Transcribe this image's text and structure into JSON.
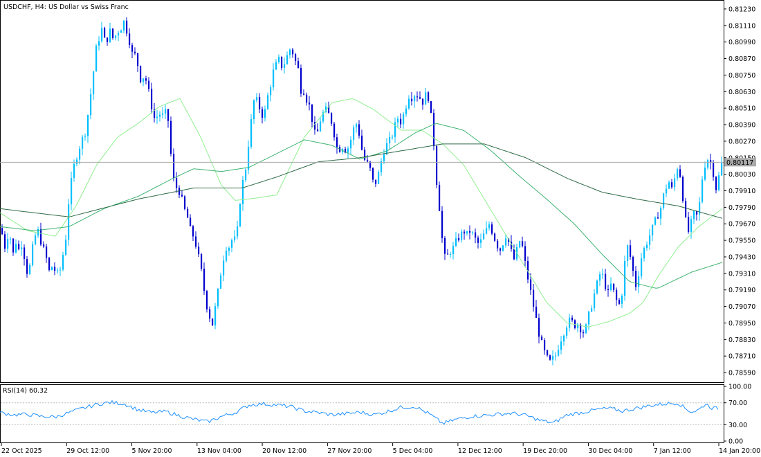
{
  "header": {
    "symbol_label": "USDCHF, H4:  US Dollar vs Swiss Franc"
  },
  "price_axis": {
    "ticks": [
      "0.81230",
      "0.81110",
      "0.80990",
      "0.80870",
      "0.80750",
      "0.80630",
      "0.80510",
      "0.80390",
      "0.80270",
      "0.80150",
      "0.80030",
      "0.79910",
      "0.79790",
      "0.79670",
      "0.79550",
      "0.79430",
      "0.79310",
      "0.79190",
      "0.79070",
      "0.78950",
      "0.78830",
      "0.78710",
      "0.78590"
    ],
    "current_price_label": "0.80117"
  },
  "time_axis": {
    "ticks": [
      "22 Oct 2025",
      "29 Oct 12:00",
      "5 Nov 20:00",
      "13 Nov 04:00",
      "20 Nov 12:00",
      "27 Nov 20:00",
      "5 Dec 04:00",
      "12 Dec 12:00",
      "19 Dec 20:00",
      "30 Dec 04:00",
      "7 Jan 12:00",
      "14 Jan 20:00"
    ]
  },
  "rsi_panel": {
    "label": "RSI(14) 60.32",
    "ticks": [
      "100.00",
      "70.00",
      "30.00",
      "0.00"
    ]
  },
  "colors": {
    "bull": "#00BFFF",
    "bear": "#0000CD",
    "ma_fast": "#90EE90",
    "ma_mid": "#3CB371",
    "ma_slow": "#2E6B46",
    "rsi_line": "#1E90FF",
    "current_line": "#A9A9A9"
  },
  "chart_data": {
    "type": "candlestick",
    "symbol": "USDCHF",
    "timeframe": "H4",
    "ylim": [
      0.7852,
      0.8129
    ],
    "current_price": 0.80117,
    "close_path": [
      [
        0,
        0.7964
      ],
      [
        4,
        0.7958
      ],
      [
        8,
        0.7948
      ],
      [
        12,
        0.7962
      ],
      [
        16,
        0.7955
      ],
      [
        20,
        0.7942
      ],
      [
        24,
        0.7958
      ],
      [
        28,
        0.7945
      ],
      [
        32,
        0.7955
      ],
      [
        36,
        0.794
      ],
      [
        40,
        0.793
      ],
      [
        44,
        0.7938
      ],
      [
        48,
        0.7953
      ],
      [
        52,
        0.796
      ],
      [
        56,
        0.7962
      ],
      [
        60,
        0.7952
      ],
      [
        64,
        0.7947
      ],
      [
        68,
        0.794
      ],
      [
        72,
        0.793
      ],
      [
        76,
        0.7938
      ],
      [
        80,
        0.7932
      ],
      [
        84,
        0.793
      ],
      [
        88,
        0.7935
      ],
      [
        92,
        0.7948
      ],
      [
        96,
        0.796
      ],
      [
        100,
        0.799
      ],
      [
        104,
        0.8
      ],
      [
        108,
        0.8012
      ],
      [
        112,
        0.8018
      ],
      [
        116,
        0.8025
      ],
      [
        120,
        0.803
      ],
      [
        124,
        0.8035
      ],
      [
        128,
        0.805
      ],
      [
        132,
        0.8065
      ],
      [
        136,
        0.8082
      ],
      [
        140,
        0.8098
      ],
      [
        144,
        0.8103
      ],
      [
        148,
        0.811
      ],
      [
        152,
        0.8097
      ],
      [
        156,
        0.8103
      ],
      [
        160,
        0.8108
      ],
      [
        164,
        0.81
      ],
      [
        168,
        0.8105
      ],
      [
        172,
        0.8108
      ],
      [
        176,
        0.811
      ],
      [
        180,
        0.8115
      ],
      [
        184,
        0.8105
      ],
      [
        188,
        0.8098
      ],
      [
        192,
        0.8088
      ],
      [
        196,
        0.809
      ],
      [
        200,
        0.808
      ],
      [
        204,
        0.807
      ],
      [
        208,
        0.8075
      ],
      [
        212,
        0.807
      ],
      [
        216,
        0.806
      ],
      [
        220,
        0.805
      ],
      [
        224,
        0.8042
      ],
      [
        228,
        0.8046
      ],
      [
        232,
        0.8047
      ],
      [
        236,
        0.8045
      ],
      [
        240,
        0.8048
      ],
      [
        244,
        0.804
      ],
      [
        248,
        0.801
      ],
      [
        252,
        0.7995
      ],
      [
        256,
        0.7993
      ],
      [
        260,
        0.799
      ],
      [
        264,
        0.7982
      ],
      [
        268,
        0.7975
      ],
      [
        272,
        0.797
      ],
      [
        276,
        0.796
      ],
      [
        280,
        0.7958
      ],
      [
        284,
        0.795
      ],
      [
        288,
        0.794
      ],
      [
        292,
        0.793
      ],
      [
        296,
        0.7915
      ],
      [
        300,
        0.7905
      ],
      [
        304,
        0.7898
      ],
      [
        308,
        0.7893
      ],
      [
        312,
        0.791
      ],
      [
        316,
        0.792
      ],
      [
        320,
        0.7935
      ],
      [
        324,
        0.7945
      ],
      [
        328,
        0.7952
      ],
      [
        332,
        0.795
      ],
      [
        336,
        0.7957
      ],
      [
        340,
        0.7955
      ],
      [
        344,
        0.7965
      ],
      [
        348,
        0.799
      ],
      [
        352,
        0.8
      ],
      [
        356,
        0.801
      ],
      [
        360,
        0.803
      ],
      [
        364,
        0.8045
      ],
      [
        368,
        0.806
      ],
      [
        372,
        0.8055
      ],
      [
        376,
        0.805
      ],
      [
        380,
        0.8045
      ],
      [
        384,
        0.805
      ],
      [
        388,
        0.8063
      ],
      [
        392,
        0.807
      ],
      [
        396,
        0.808
      ],
      [
        400,
        0.8083
      ],
      [
        404,
        0.8087
      ],
      [
        408,
        0.808
      ],
      [
        412,
        0.8085
      ],
      [
        416,
        0.809
      ],
      [
        420,
        0.8095
      ],
      [
        424,
        0.809
      ],
      [
        428,
        0.8083
      ],
      [
        432,
        0.8078
      ],
      [
        436,
        0.806
      ],
      [
        440,
        0.8065
      ],
      [
        444,
        0.8055
      ],
      [
        448,
        0.8052
      ],
      [
        452,
        0.804
      ],
      [
        456,
        0.803
      ],
      [
        460,
        0.8035
      ],
      [
        464,
        0.8045
      ],
      [
        468,
        0.8048
      ],
      [
        472,
        0.805
      ],
      [
        476,
        0.8045
      ],
      [
        480,
        0.804
      ],
      [
        484,
        0.803
      ],
      [
        488,
        0.802
      ],
      [
        492,
        0.8022
      ],
      [
        496,
        0.8024
      ],
      [
        500,
        0.802
      ],
      [
        504,
        0.8023
      ],
      [
        508,
        0.803
      ],
      [
        512,
        0.8038
      ],
      [
        516,
        0.804
      ],
      [
        520,
        0.803
      ],
      [
        524,
        0.8018
      ],
      [
        528,
        0.8012
      ],
      [
        532,
        0.801
      ],
      [
        536,
        0.8005
      ],
      [
        540,
        0.7995
      ],
      [
        544,
        0.7998
      ],
      [
        548,
        0.8005
      ],
      [
        552,
        0.8015
      ],
      [
        556,
        0.8022
      ],
      [
        560,
        0.8025
      ],
      [
        564,
        0.8028
      ],
      [
        568,
        0.8033
      ],
      [
        572,
        0.804
      ],
      [
        576,
        0.8045
      ],
      [
        580,
        0.804
      ],
      [
        584,
        0.8048
      ],
      [
        588,
        0.8055
      ],
      [
        592,
        0.8062
      ],
      [
        596,
        0.8058
      ],
      [
        600,
        0.8062
      ],
      [
        604,
        0.806
      ],
      [
        608,
        0.8058
      ],
      [
        612,
        0.8055
      ],
      [
        616,
        0.8062
      ],
      [
        620,
        0.8058
      ],
      [
        624,
        0.804
      ],
      [
        628,
        0.802
      ],
      [
        632,
        0.799
      ],
      [
        636,
        0.7975
      ],
      [
        640,
        0.795
      ],
      [
        644,
        0.794
      ],
      [
        648,
        0.7945
      ],
      [
        652,
        0.7948
      ],
      [
        656,
        0.795
      ],
      [
        660,
        0.7955
      ],
      [
        664,
        0.7958
      ],
      [
        668,
        0.796
      ],
      [
        672,
        0.7962
      ],
      [
        676,
        0.7958
      ],
      [
        680,
        0.7963
      ],
      [
        684,
        0.7958
      ],
      [
        688,
        0.7955
      ],
      [
        692,
        0.7952
      ],
      [
        696,
        0.7955
      ],
      [
        700,
        0.796
      ],
      [
        704,
        0.7963
      ],
      [
        708,
        0.7968
      ],
      [
        712,
        0.796
      ],
      [
        716,
        0.7955
      ],
      [
        720,
        0.795
      ],
      [
        724,
        0.7948
      ],
      [
        728,
        0.7955
      ],
      [
        732,
        0.796
      ],
      [
        736,
        0.7952
      ],
      [
        740,
        0.7945
      ],
      [
        744,
        0.794
      ],
      [
        748,
        0.795
      ],
      [
        752,
        0.7956
      ],
      [
        756,
        0.7948
      ],
      [
        760,
        0.7935
      ],
      [
        764,
        0.7925
      ],
      [
        768,
        0.7915
      ],
      [
        772,
        0.7905
      ],
      [
        776,
        0.7895
      ],
      [
        780,
        0.7885
      ],
      [
        784,
        0.7878
      ],
      [
        788,
        0.7872
      ],
      [
        792,
        0.7868
      ],
      [
        796,
        0.7866
      ],
      [
        800,
        0.787
      ],
      [
        804,
        0.7872
      ],
      [
        808,
        0.788
      ],
      [
        812,
        0.7885
      ],
      [
        816,
        0.789
      ],
      [
        820,
        0.7895
      ],
      [
        824,
        0.7897
      ],
      [
        828,
        0.7895
      ],
      [
        832,
        0.7893
      ],
      [
        836,
        0.7895
      ],
      [
        840,
        0.789
      ],
      [
        844,
        0.7888
      ],
      [
        848,
        0.7893
      ],
      [
        852,
        0.7903
      ],
      [
        856,
        0.791
      ],
      [
        860,
        0.7918
      ],
      [
        864,
        0.7925
      ],
      [
        868,
        0.7932
      ],
      [
        872,
        0.7928
      ],
      [
        876,
        0.792
      ],
      [
        880,
        0.7915
      ],
      [
        884,
        0.7925
      ],
      [
        888,
        0.7915
      ],
      [
        892,
        0.791
      ],
      [
        896,
        0.7908
      ],
      [
        900,
        0.792
      ],
      [
        904,
        0.7945
      ],
      [
        908,
        0.7952
      ],
      [
        912,
        0.794
      ],
      [
        916,
        0.793
      ],
      [
        920,
        0.792
      ],
      [
        924,
        0.7935
      ],
      [
        928,
        0.7945
      ],
      [
        932,
        0.795
      ],
      [
        936,
        0.7955
      ],
      [
        940,
        0.796
      ],
      [
        944,
        0.7965
      ],
      [
        948,
        0.797
      ],
      [
        952,
        0.7975
      ],
      [
        956,
        0.798
      ],
      [
        960,
        0.799
      ],
      [
        964,
        0.7995
      ],
      [
        968,
        0.7998
      ],
      [
        972,
        0.799
      ],
      [
        976,
        0.8003
      ],
      [
        980,
        0.801
      ],
      [
        984,
        0.8
      ],
      [
        988,
        0.7982
      ],
      [
        992,
        0.7965
      ],
      [
        996,
        0.796
      ],
      [
        1000,
        0.797
      ],
      [
        1004,
        0.7975
      ],
      [
        1008,
        0.7972
      ],
      [
        1012,
        0.7985
      ],
      [
        1016,
        0.8005
      ],
      [
        1020,
        0.8012
      ],
      [
        1024,
        0.8015
      ],
      [
        1028,
        0.801
      ],
      [
        1032,
        0.8002
      ],
      [
        1036,
        0.799
      ],
      [
        1040,
        0.8005
      ],
      [
        1044,
        0.8012
      ]
    ],
    "ma_fast": [
      [
        0,
        0.7975
      ],
      [
        40,
        0.7962
      ],
      [
        80,
        0.7958
      ],
      [
        110,
        0.798
      ],
      [
        140,
        0.801
      ],
      [
        170,
        0.803
      ],
      [
        200,
        0.804
      ],
      [
        230,
        0.8052
      ],
      [
        260,
        0.8058
      ],
      [
        290,
        0.803
      ],
      [
        320,
        0.7995
      ],
      [
        340,
        0.7984
      ],
      [
        360,
        0.7985
      ],
      [
        400,
        0.7988
      ],
      [
        440,
        0.803
      ],
      [
        480,
        0.8055
      ],
      [
        510,
        0.8058
      ],
      [
        540,
        0.805
      ],
      [
        580,
        0.8035
      ],
      [
        610,
        0.8035
      ],
      [
        640,
        0.8025
      ],
      [
        670,
        0.801
      ],
      [
        700,
        0.7985
      ],
      [
        730,
        0.796
      ],
      [
        760,
        0.7935
      ],
      [
        790,
        0.791
      ],
      [
        820,
        0.7895
      ],
      [
        850,
        0.7892
      ],
      [
        880,
        0.7896
      ],
      [
        910,
        0.7902
      ],
      [
        930,
        0.791
      ],
      [
        950,
        0.7928
      ],
      [
        980,
        0.795
      ],
      [
        1010,
        0.7965
      ],
      [
        1044,
        0.7978
      ]
    ],
    "ma_mid": [
      [
        0,
        0.7965
      ],
      [
        50,
        0.7962
      ],
      [
        100,
        0.7965
      ],
      [
        150,
        0.7978
      ],
      [
        200,
        0.7987
      ],
      [
        250,
        0.8
      ],
      [
        280,
        0.8007
      ],
      [
        320,
        0.8005
      ],
      [
        360,
        0.8008
      ],
      [
        400,
        0.8018
      ],
      [
        440,
        0.8028
      ],
      [
        480,
        0.8024
      ],
      [
        520,
        0.8014
      ],
      [
        560,
        0.802
      ],
      [
        600,
        0.8033
      ],
      [
        630,
        0.804
      ],
      [
        670,
        0.8035
      ],
      [
        710,
        0.802
      ],
      [
        750,
        0.8002
      ],
      [
        790,
        0.7985
      ],
      [
        830,
        0.7967
      ],
      [
        870,
        0.7945
      ],
      [
        910,
        0.7925
      ],
      [
        950,
        0.792
      ],
      [
        1000,
        0.7932
      ],
      [
        1044,
        0.7939
      ]
    ],
    "ma_slow": [
      [
        0,
        0.7978
      ],
      [
        100,
        0.7972
      ],
      [
        200,
        0.7985
      ],
      [
        280,
        0.7993
      ],
      [
        350,
        0.7993
      ],
      [
        400,
        0.8001
      ],
      [
        460,
        0.8012
      ],
      [
        520,
        0.8015
      ],
      [
        580,
        0.802
      ],
      [
        640,
        0.8025
      ],
      [
        700,
        0.8025
      ],
      [
        760,
        0.8015
      ],
      [
        820,
        0.8
      ],
      [
        870,
        0.799
      ],
      [
        920,
        0.7985
      ],
      [
        980,
        0.798
      ],
      [
        1044,
        0.7971
      ]
    ],
    "rsi": [
      [
        0,
        52
      ],
      [
        20,
        48
      ],
      [
        40,
        49
      ],
      [
        60,
        45
      ],
      [
        80,
        44
      ],
      [
        100,
        52
      ],
      [
        120,
        60
      ],
      [
        140,
        67
      ],
      [
        160,
        71
      ],
      [
        180,
        68
      ],
      [
        200,
        57
      ],
      [
        220,
        52
      ],
      [
        240,
        54
      ],
      [
        260,
        46
      ],
      [
        280,
        40
      ],
      [
        300,
        35
      ],
      [
        320,
        45
      ],
      [
        340,
        52
      ],
      [
        360,
        66
      ],
      [
        380,
        68
      ],
      [
        400,
        66
      ],
      [
        420,
        63
      ],
      [
        440,
        55
      ],
      [
        460,
        52
      ],
      [
        480,
        48
      ],
      [
        500,
        50
      ],
      [
        520,
        53
      ],
      [
        540,
        48
      ],
      [
        560,
        54
      ],
      [
        580,
        62
      ],
      [
        600,
        63
      ],
      [
        620,
        50
      ],
      [
        640,
        32
      ],
      [
        660,
        40
      ],
      [
        680,
        45
      ],
      [
        700,
        47
      ],
      [
        720,
        49
      ],
      [
        740,
        51
      ],
      [
        760,
        47
      ],
      [
        780,
        38
      ],
      [
        800,
        33
      ],
      [
        820,
        48
      ],
      [
        840,
        52
      ],
      [
        860,
        57
      ],
      [
        880,
        60
      ],
      [
        900,
        55
      ],
      [
        920,
        60
      ],
      [
        940,
        65
      ],
      [
        960,
        68
      ],
      [
        980,
        70
      ],
      [
        990,
        60
      ],
      [
        1000,
        53
      ],
      [
        1010,
        57
      ],
      [
        1020,
        68
      ],
      [
        1030,
        60
      ],
      [
        1040,
        60
      ]
    ]
  }
}
